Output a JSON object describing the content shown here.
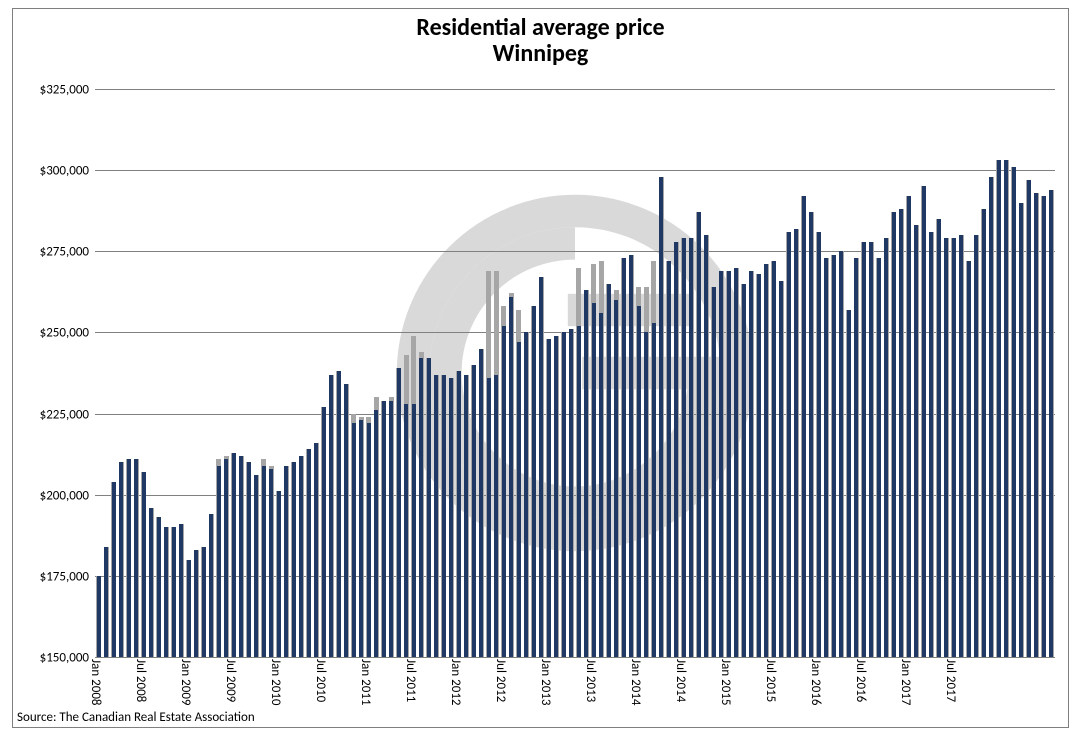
{
  "chart": {
    "type": "bar",
    "title_line1": "Residential average price",
    "title_line2": "Winnipeg",
    "title_fontsize": 24,
    "title_color": "#000000",
    "axis_fontsize": 13,
    "source_text": "Source: The Canadian Real Estate Association",
    "source_fontsize": 13,
    "background_color": "#ffffff",
    "border_color": "#7f7f7f",
    "grid_color": "#808080",
    "bar_fg_color": "#1f3864",
    "bar_bg_color": "#a6a6a6",
    "watermark_color": "#d9d9d9",
    "ymin": 150000,
    "ymax": 325000,
    "ytick_step": 25000,
    "ytick_labels": [
      "$150,000",
      "$175,000",
      "$200,000",
      "$225,000",
      "$250,000",
      "$275,000",
      "$300,000",
      "$325,000"
    ],
    "x_tick_labels": [
      "Jan 2008",
      "Jul 2008",
      "Jan 2009",
      "Jul 2009",
      "Jan 2010",
      "Jul 2010",
      "Jan 2011",
      "Jul 2011",
      "Jan 2012",
      "Jul 2012",
      "Jan 2013",
      "Jul 2013",
      "Jan 2014",
      "Jul 2014",
      "Jan 2015",
      "Jul 2015",
      "Jan 2016",
      "Jul 2016",
      "Jan 2017",
      "Jul 2017"
    ],
    "x_tick_every": 6,
    "values_fg": [
      175000,
      184000,
      204000,
      210000,
      211000,
      211000,
      207000,
      196000,
      193000,
      190000,
      190000,
      191000,
      180000,
      183000,
      184000,
      194000,
      209000,
      211000,
      213000,
      212000,
      210000,
      206000,
      209000,
      208000,
      201000,
      209000,
      210000,
      212000,
      214000,
      216000,
      227000,
      237000,
      238000,
      234000,
      222000,
      223000,
      222000,
      226000,
      229000,
      229000,
      239000,
      228000,
      228000,
      242000,
      242000,
      237000,
      237000,
      236000,
      238000,
      237000,
      240000,
      245000,
      236000,
      237000,
      252000,
      261000,
      247000,
      250000,
      258000,
      267000,
      248000,
      249000,
      250000,
      251000,
      252000,
      263000,
      259000,
      256000,
      265000,
      260000,
      273000,
      274000,
      258000,
      250000,
      253000,
      298000,
      272000,
      278000,
      279000,
      279000,
      287000,
      280000,
      264000,
      269000,
      269000,
      270000,
      265000,
      269000,
      268000,
      271000,
      272000,
      266000,
      281000,
      282000,
      292000,
      287000,
      281000,
      273000,
      274000,
      275000,
      257000,
      273000,
      278000,
      278000,
      273000,
      279000,
      287000,
      288000,
      292000,
      283000,
      295000,
      281000,
      285000,
      279000,
      279000,
      280000,
      272000,
      280000,
      288000,
      298000,
      303000,
      303000,
      301000,
      290000,
      297000,
      293000,
      292000,
      294000
    ],
    "values_bg": [
      175000,
      184000,
      204000,
      210000,
      211000,
      211000,
      207000,
      196000,
      193000,
      190000,
      190000,
      191000,
      180000,
      183000,
      184000,
      194000,
      211000,
      212000,
      213000,
      212000,
      210000,
      206000,
      211000,
      209000,
      201000,
      209000,
      210000,
      212000,
      214000,
      216000,
      227000,
      237000,
      238000,
      234000,
      225000,
      224000,
      224000,
      230000,
      229000,
      230000,
      239000,
      243000,
      249000,
      244000,
      242000,
      237000,
      237000,
      236000,
      238000,
      237000,
      240000,
      245000,
      269000,
      269000,
      258000,
      262000,
      257000,
      250000,
      258000,
      267000,
      248000,
      249000,
      250000,
      251000,
      270000,
      263000,
      271000,
      272000,
      265000,
      263000,
      273000,
      274000,
      264000,
      264000,
      272000,
      298000,
      272000,
      278000,
      279000,
      279000,
      287000,
      280000,
      264000,
      269000,
      269000,
      270000,
      265000,
      269000,
      268000,
      271000,
      272000,
      266000,
      281000,
      282000,
      292000,
      287000,
      281000,
      273000,
      274000,
      275000,
      257000,
      273000,
      278000,
      278000,
      273000,
      279000,
      287000,
      288000,
      292000,
      283000,
      295000,
      281000,
      285000,
      279000,
      279000,
      280000,
      272000,
      280000,
      288000,
      298000,
      303000,
      303000,
      301000,
      290000,
      297000,
      293000,
      292000,
      294000
    ]
  }
}
